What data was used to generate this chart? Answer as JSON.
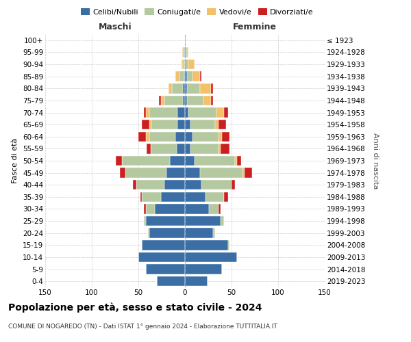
{
  "age_groups": [
    "0-4",
    "5-9",
    "10-14",
    "15-19",
    "20-24",
    "25-29",
    "30-34",
    "35-39",
    "40-44",
    "45-49",
    "50-54",
    "55-59",
    "60-64",
    "65-69",
    "70-74",
    "75-79",
    "80-84",
    "85-89",
    "90-94",
    "95-99",
    "100+"
  ],
  "birth_years": [
    "2019-2023",
    "2014-2018",
    "2009-2013",
    "2004-2008",
    "1999-2003",
    "1994-1998",
    "1989-1993",
    "1984-1988",
    "1979-1983",
    "1974-1978",
    "1969-1973",
    "1964-1968",
    "1959-1963",
    "1954-1958",
    "1949-1953",
    "1944-1948",
    "1939-1943",
    "1934-1938",
    "1929-1933",
    "1924-1928",
    "≤ 1923"
  ],
  "maschi": {
    "celibi": [
      30,
      42,
      50,
      46,
      38,
      42,
      32,
      26,
      22,
      20,
      16,
      9,
      10,
      8,
      8,
      2,
      2,
      1,
      0,
      1,
      0
    ],
    "coniugati": [
      0,
      0,
      0,
      0,
      2,
      2,
      10,
      20,
      30,
      44,
      52,
      28,
      28,
      28,
      30,
      20,
      12,
      5,
      2,
      1,
      0
    ],
    "vedovi": [
      0,
      0,
      0,
      0,
      0,
      0,
      0,
      0,
      0,
      0,
      0,
      0,
      4,
      2,
      4,
      4,
      4,
      4,
      2,
      1,
      0
    ],
    "divorziati": [
      0,
      0,
      0,
      0,
      0,
      0,
      2,
      2,
      4,
      6,
      6,
      4,
      8,
      8,
      2,
      2,
      0,
      0,
      0,
      0,
      0
    ]
  },
  "femmine": {
    "nubili": [
      24,
      40,
      56,
      46,
      30,
      38,
      26,
      22,
      18,
      16,
      10,
      6,
      8,
      6,
      4,
      2,
      2,
      2,
      0,
      0,
      0
    ],
    "coniugate": [
      0,
      0,
      0,
      2,
      2,
      4,
      10,
      20,
      32,
      46,
      44,
      30,
      28,
      26,
      30,
      18,
      14,
      6,
      4,
      2,
      1
    ],
    "vedove": [
      0,
      0,
      0,
      0,
      0,
      0,
      0,
      0,
      0,
      2,
      2,
      2,
      4,
      4,
      8,
      8,
      12,
      8,
      6,
      2,
      0
    ],
    "divorziate": [
      0,
      0,
      0,
      0,
      0,
      0,
      2,
      4,
      4,
      8,
      4,
      10,
      8,
      8,
      4,
      2,
      2,
      2,
      0,
      0,
      0
    ]
  },
  "colors": {
    "celibi": "#3a6ea5",
    "coniugati": "#b5c9a1",
    "vedovi": "#f4c06a",
    "divorziati": "#cc2020"
  },
  "xlim": 150,
  "title": "Popolazione per età, sesso e stato civile - 2024",
  "subtitle": "COMUNE DI NOGAREDO (TN) - Dati ISTAT 1° gennaio 2024 - Elaborazione TUTTITALIA.IT",
  "xlabel_left": "Maschi",
  "xlabel_right": "Femmine",
  "ylabel_left": "Fasce di età",
  "ylabel_right": "Anni di nascita",
  "legend_labels": [
    "Celibi/Nubili",
    "Coniugati/e",
    "Vedovi/e",
    "Divorziati/e"
  ],
  "xticks": [
    -150,
    -100,
    -50,
    0,
    50,
    100,
    150
  ]
}
